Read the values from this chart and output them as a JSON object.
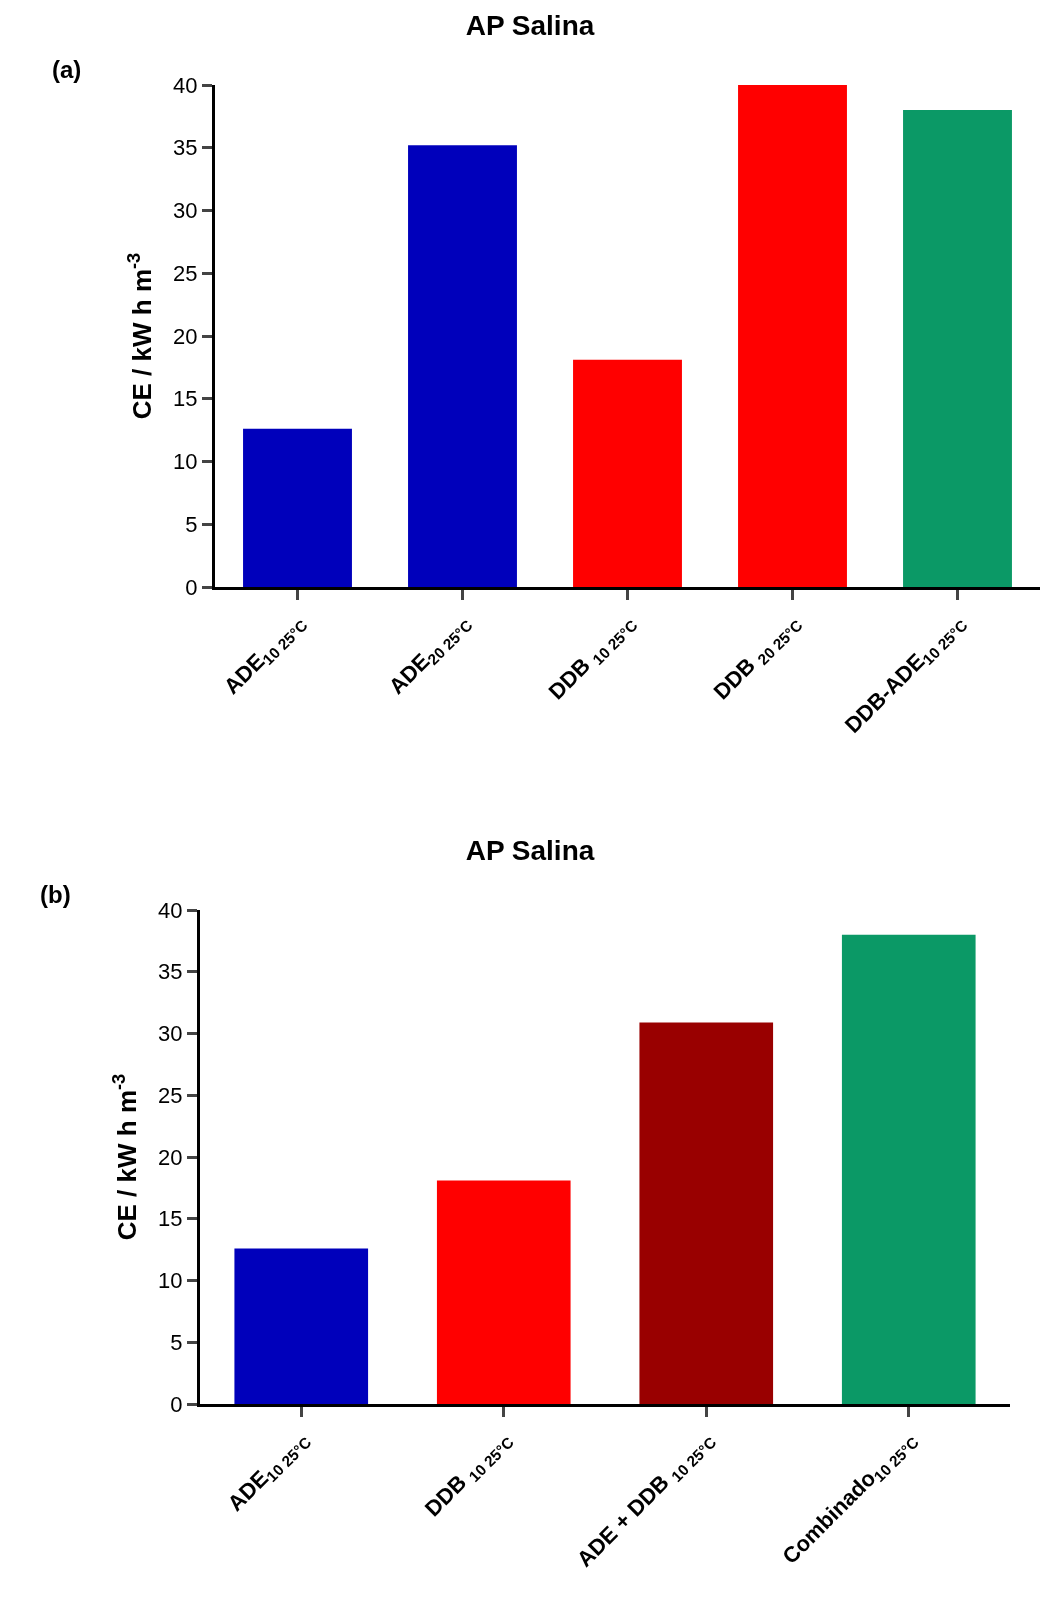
{
  "chart_data": [
    {
      "type": "bar",
      "title": "AP Salina",
      "ylabel": "CE / kW h m$^{-3}$",
      "annotations": [
        "(a)"
      ],
      "categories": [
        "ADE$_{10 25°C}$",
        "ADE$_{20 25°C}$",
        "DDB $_{10 25°C}$",
        "DDB $_{20 25°C}$",
        "DDB-ADE$_{10 25°C}$"
      ],
      "values": [
        12.6,
        35.2,
        18.1,
        40,
        38
      ],
      "colors": [
        "#0000bb",
        "#0000bb",
        "#ff0000",
        "#ff0000",
        "#0b9966"
      ],
      "ylim": [
        0,
        40
      ],
      "yticks": [
        0,
        5,
        10,
        15,
        20,
        25,
        30,
        35,
        40
      ],
      "grid": false
    },
    {
      "type": "bar",
      "title": "AP Salina",
      "ylabel": "CE / kW h m$^{-3}$",
      "annotations": [
        "(b)"
      ],
      "categories": [
        "ADE$_{10 25°C}$",
        "DDB $_{10 25°C}$",
        "ADE + DDB $_{10 25°C}$",
        "Combinado$_{10 25°C}$"
      ],
      "values": [
        12.6,
        18.1,
        30.9,
        38
      ],
      "colors": [
        "#0000bb",
        "#ff0000",
        "#990000",
        "#0b9966"
      ],
      "ylim": [
        0,
        40
      ],
      "yticks": [
        0,
        5,
        10,
        15,
        20,
        25,
        30,
        35,
        40
      ],
      "grid": false
    }
  ]
}
